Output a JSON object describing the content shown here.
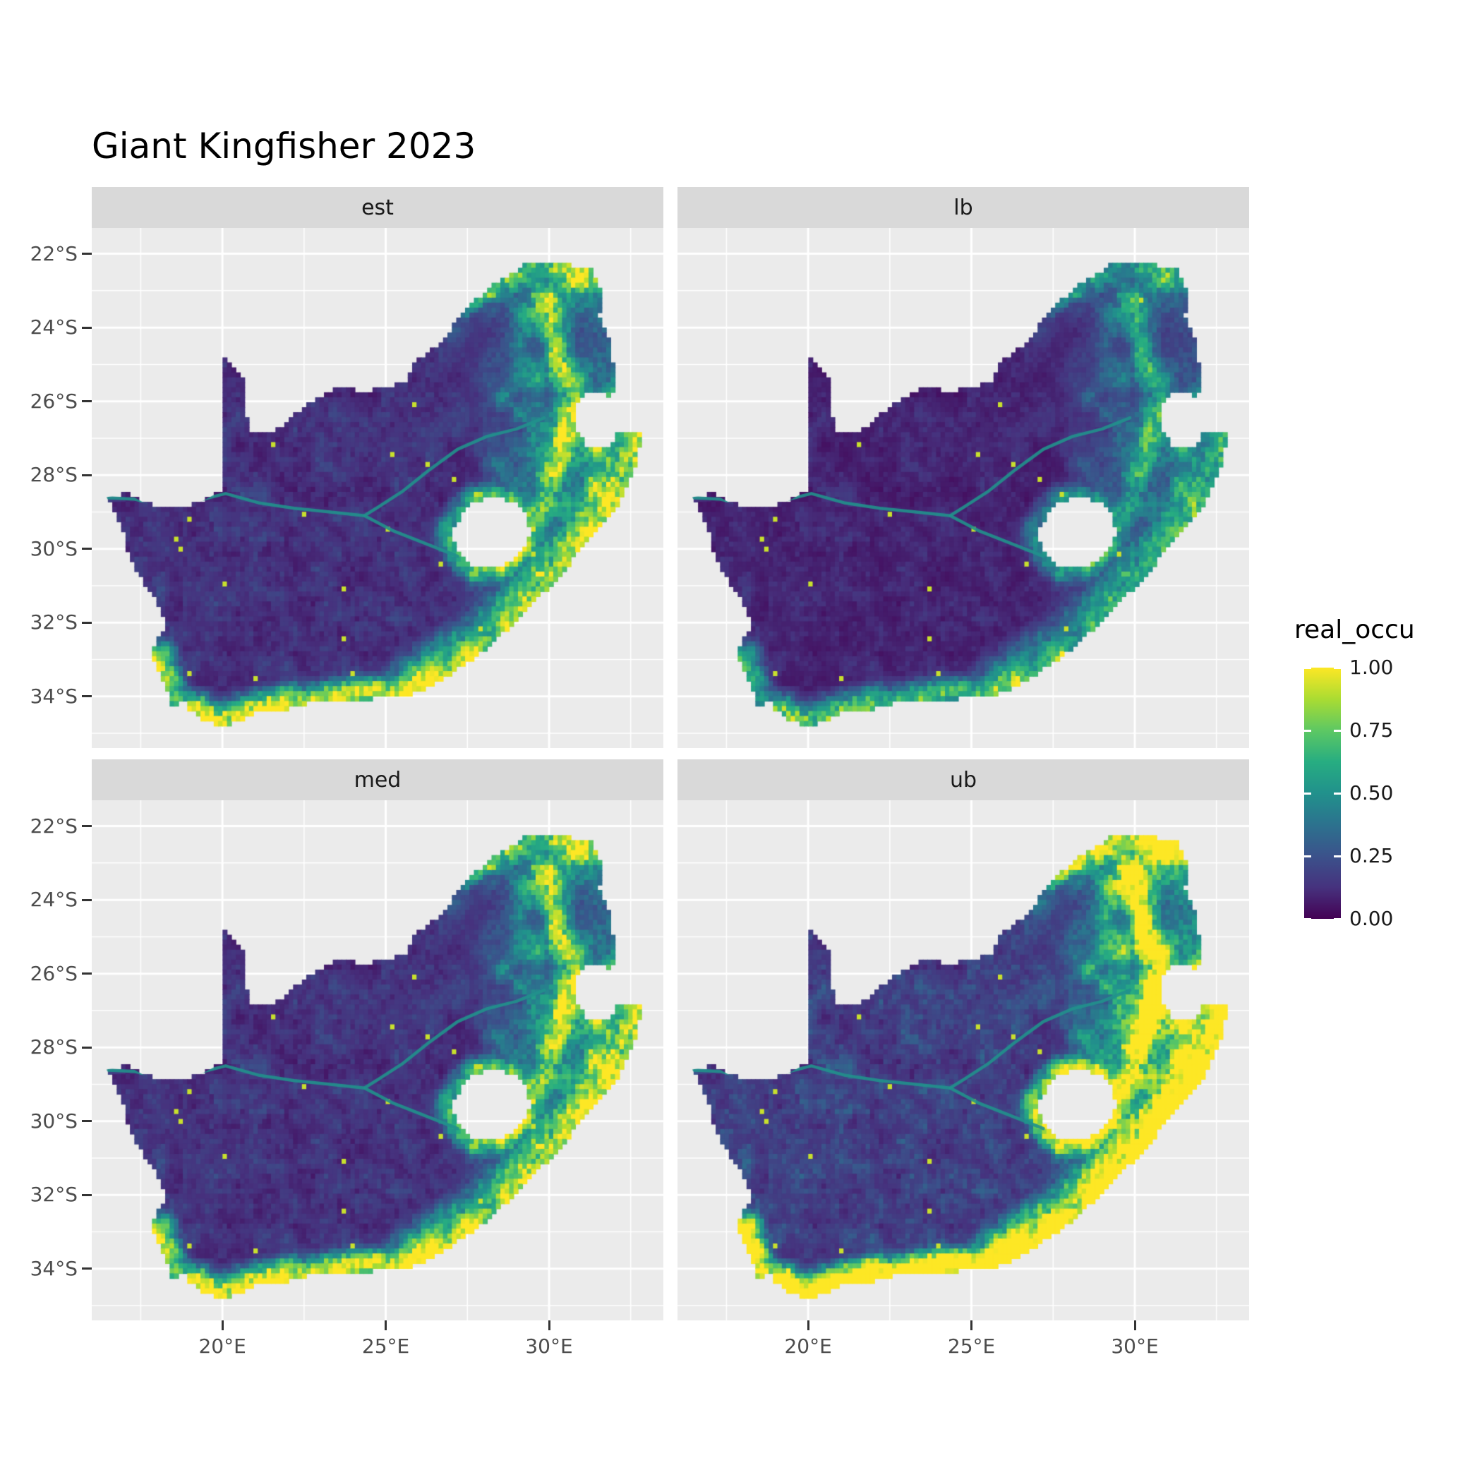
{
  "title": "Giant Kingfisher 2023",
  "facets": [
    {
      "label": "est"
    },
    {
      "label": "lb"
    },
    {
      "label": "med"
    },
    {
      "label": "ub"
    }
  ],
  "axes": {
    "x_ticks": [
      {
        "label": "20°E",
        "lon": 20
      },
      {
        "label": "25°E",
        "lon": 25
      },
      {
        "label": "30°E",
        "lon": 30
      }
    ],
    "y_ticks": [
      {
        "label": "22°S",
        "lat": -22
      },
      {
        "label": "24°S",
        "lat": -24
      },
      {
        "label": "26°S",
        "lat": -26
      },
      {
        "label": "28°S",
        "lat": -28
      },
      {
        "label": "30°S",
        "lat": -30
      },
      {
        "label": "32°S",
        "lat": -32
      },
      {
        "label": "34°S",
        "lat": -34
      }
    ]
  },
  "legend": {
    "title": "real_occu",
    "ticks": [
      {
        "label": "1.00",
        "value": 1.0
      },
      {
        "label": "0.75",
        "value": 0.75
      },
      {
        "label": "0.50",
        "value": 0.5
      },
      {
        "label": "0.25",
        "value": 0.25
      },
      {
        "label": "0.00",
        "value": 0.0
      }
    ]
  },
  "colors": {
    "panel_bg": "#EBEBEB",
    "grid_major": "#FFFFFF",
    "grid_minor": "#FFFFFF",
    "strip_bg": "#D9D9D9",
    "axis_text": "#4D4D4D",
    "tick_mark": "#333333",
    "river": "#21918C"
  },
  "chart_data": {
    "type": "heatmap",
    "title": "Giant Kingfisher 2023",
    "variable": "real_occu",
    "value_range": [
      0,
      1
    ],
    "legend_breaks": [
      0.0,
      0.25,
      0.5,
      0.75,
      1.0
    ],
    "facets": [
      "est",
      "lb",
      "med",
      "ub"
    ],
    "facet_intensity": {
      "est": 1.0,
      "lb": 0.72,
      "med": 1.05,
      "ub": 1.42
    },
    "region": "South Africa",
    "lon_range": [
      16.0,
      33.5
    ],
    "lat_range": [
      -35.4,
      -21.3
    ],
    "grid_lon_major": [
      20,
      25,
      30
    ],
    "grid_lat_major": [
      -22,
      -24,
      -26,
      -28,
      -30,
      -32,
      -34
    ],
    "grid_lon_minor": [
      17.5,
      22.5,
      27.5,
      32.5
    ],
    "grid_lat_minor": [
      -23,
      -25,
      -27,
      -29,
      -31,
      -33,
      -35
    ],
    "cell_size_deg": 0.135,
    "viridis_stops": [
      "#440154",
      "#46327E",
      "#3B528B",
      "#2C728E",
      "#21918C",
      "#27AD81",
      "#5DC863",
      "#AADC32",
      "#FDE725"
    ],
    "value_pattern": "Very low occupancy (0-0.1, dark purple) across the arid western and central interior (Karoo, Kalahari); moderate mottled 0.2-0.6 (blue-teal-green) over the north-eastern bushveld and highveld; high 0.7-1.0 (yellow) along the eastern escarpment, KwaZulu-Natal coast, Wild Coast and the southern/southwestern Cape coast; teal Orange and Vaal river corridors cross the dark interior; lb facet darkest, ub facet brightest with extensive yellow in the east.",
    "outline": [
      [
        16.45,
        -28.6
      ],
      [
        17.1,
        -28.5
      ],
      [
        17.6,
        -28.75
      ],
      [
        18.2,
        -28.9
      ],
      [
        18.8,
        -28.9
      ],
      [
        19.4,
        -28.7
      ],
      [
        19.98,
        -28.42
      ],
      [
        19.98,
        -24.78
      ],
      [
        20.65,
        -25.45
      ],
      [
        20.7,
        -26.2
      ],
      [
        20.85,
        -26.8
      ],
      [
        21.6,
        -26.85
      ],
      [
        22.2,
        -26.35
      ],
      [
        22.9,
        -25.95
      ],
      [
        23.6,
        -25.62
      ],
      [
        24.4,
        -25.75
      ],
      [
        25.0,
        -25.62
      ],
      [
        25.6,
        -25.5
      ],
      [
        25.9,
        -24.95
      ],
      [
        26.4,
        -24.6
      ],
      [
        26.9,
        -24.3
      ],
      [
        27.2,
        -23.7
      ],
      [
        27.7,
        -23.3
      ],
      [
        28.2,
        -22.9
      ],
      [
        28.9,
        -22.55
      ],
      [
        29.4,
        -22.2
      ],
      [
        30.0,
        -22.28
      ],
      [
        30.6,
        -22.3
      ],
      [
        31.3,
        -22.4
      ],
      [
        31.6,
        -23.0
      ],
      [
        31.55,
        -23.7
      ],
      [
        31.8,
        -24.2
      ],
      [
        31.95,
        -24.8
      ],
      [
        32.02,
        -25.55
      ],
      [
        31.9,
        -25.85
      ],
      [
        31.3,
        -25.75
      ],
      [
        30.95,
        -25.92
      ],
      [
        30.8,
        -26.28
      ],
      [
        30.85,
        -26.78
      ],
      [
        31.15,
        -27.2
      ],
      [
        31.6,
        -27.32
      ],
      [
        31.97,
        -27.1
      ],
      [
        32.12,
        -26.86
      ],
      [
        32.9,
        -26.86
      ],
      [
        32.6,
        -27.9
      ],
      [
        32.25,
        -28.6
      ],
      [
        31.75,
        -29.25
      ],
      [
        31.05,
        -29.9
      ],
      [
        30.4,
        -30.7
      ],
      [
        29.7,
        -31.3
      ],
      [
        28.9,
        -32.05
      ],
      [
        28.1,
        -32.7
      ],
      [
        27.3,
        -33.2
      ],
      [
        26.4,
        -33.75
      ],
      [
        25.65,
        -34.0
      ],
      [
        25.0,
        -34.0
      ],
      [
        24.2,
        -34.15
      ],
      [
        23.4,
        -34.1
      ],
      [
        22.6,
        -34.18
      ],
      [
        21.8,
        -34.4
      ],
      [
        21.0,
        -34.45
      ],
      [
        20.4,
        -34.72
      ],
      [
        20.0,
        -34.82
      ],
      [
        19.4,
        -34.62
      ],
      [
        19.0,
        -34.35
      ],
      [
        18.8,
        -34.1
      ],
      [
        18.45,
        -34.32
      ],
      [
        18.35,
        -33.9
      ],
      [
        18.05,
        -33.35
      ],
      [
        17.85,
        -32.8
      ],
      [
        18.25,
        -32.1
      ],
      [
        18.1,
        -31.6
      ],
      [
        17.35,
        -30.6
      ],
      [
        17.05,
        -29.9
      ],
      [
        16.9,
        -29.3
      ]
    ],
    "lesotho_hole": [
      [
        27.0,
        -29.6
      ],
      [
        27.35,
        -29.05
      ],
      [
        27.75,
        -28.7
      ],
      [
        28.35,
        -28.6
      ],
      [
        28.95,
        -28.75
      ],
      [
        29.35,
        -29.15
      ],
      [
        29.45,
        -29.65
      ],
      [
        29.1,
        -30.15
      ],
      [
        28.5,
        -30.55
      ],
      [
        27.8,
        -30.55
      ],
      [
        27.3,
        -30.2
      ]
    ],
    "rivers": {
      "orange": [
        [
          27.2,
          -30.2
        ],
        [
          26.2,
          -29.85
        ],
        [
          25.2,
          -29.5
        ],
        [
          24.35,
          -29.1
        ],
        [
          23.3,
          -29.0
        ],
        [
          22.2,
          -28.9
        ],
        [
          21.1,
          -28.75
        ],
        [
          20.1,
          -28.5
        ],
        [
          19.2,
          -28.7
        ],
        [
          18.3,
          -28.85
        ],
        [
          17.3,
          -28.65
        ],
        [
          16.5,
          -28.62
        ]
      ],
      "vaal": [
        [
          29.85,
          -26.45
        ],
        [
          29.0,
          -26.75
        ],
        [
          28.1,
          -26.95
        ],
        [
          27.2,
          -27.3
        ],
        [
          26.35,
          -27.85
        ],
        [
          25.5,
          -28.45
        ],
        [
          24.8,
          -28.85
        ],
        [
          24.35,
          -29.1
        ]
      ]
    }
  }
}
